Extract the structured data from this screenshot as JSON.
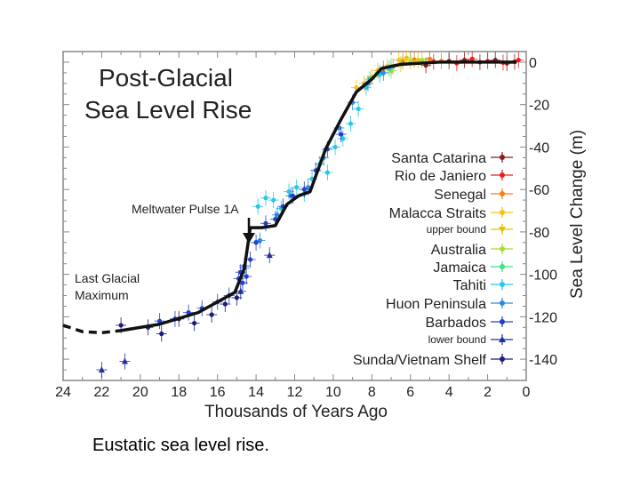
{
  "caption": "Eustatic sea level rise.",
  "chart_data": {
    "type": "scatter",
    "title_lines": [
      "Post-Glacial",
      "Sea Level Rise"
    ],
    "xlabel": "Thousands of Years Ago",
    "ylabel": "Sea Level Change (m)",
    "xlim": [
      24,
      0
    ],
    "ylim": [
      -150,
      5
    ],
    "x_ticks": [
      24,
      22,
      20,
      18,
      16,
      14,
      12,
      10,
      8,
      6,
      4,
      2,
      0
    ],
    "y_ticks": [
      0,
      -20,
      -40,
      -60,
      -80,
      -100,
      -120,
      -140
    ],
    "annotations": [
      {
        "text": "Meltwater Pulse 1A",
        "x": 14.6,
        "y": -87
      },
      {
        "text_lines": [
          "Last Glacial",
          "Maximum"
        ]
      }
    ],
    "curve": {
      "x": [
        21,
        19,
        17,
        15.1,
        14.6,
        14.3,
        13.7,
        13.0,
        12.4,
        11.8,
        11.2,
        10.4,
        9.6,
        8.8,
        8.0,
        7.5,
        6.5,
        5.5,
        4.5,
        3.5,
        2.5,
        1.5,
        0.5
      ],
      "y": [
        -126.5,
        -123.5,
        -118,
        -108.5,
        -97,
        -78,
        -78,
        -77,
        -67,
        -63,
        -61,
        -41,
        -27,
        -14,
        -8,
        -3,
        -1,
        -0.5,
        0,
        0,
        0,
        0,
        0
      ]
    },
    "dashed_extension": {
      "x": [
        24,
        23,
        22,
        21
      ],
      "y": [
        -124,
        -127,
        -127.5,
        -126.5
      ]
    },
    "legend": {
      "position": "right",
      "entries": [
        {
          "name": "Santa Catarina",
          "color": "#8b1a1a",
          "marker": "dot"
        },
        {
          "name": "Rio de Janiero",
          "color": "#e8201e",
          "marker": "dot"
        },
        {
          "name": "Senegal",
          "color": "#f57f17",
          "marker": "dot"
        },
        {
          "name": "Malacca Straits",
          "color": "#f7c010",
          "marker": "dot"
        },
        {
          "name": "upper bound",
          "color": "#e8c400",
          "marker": "triangle-down",
          "small": true
        },
        {
          "name": "Australia",
          "color": "#a8df2e",
          "marker": "dot"
        },
        {
          "name": "Jamaica",
          "color": "#3fe08a",
          "marker": "dot"
        },
        {
          "name": "Tahiti",
          "color": "#27c8e8",
          "marker": "dot"
        },
        {
          "name": "Huon Peninsula",
          "color": "#2a8ae0",
          "marker": "dot"
        },
        {
          "name": "Barbados",
          "color": "#2340c8",
          "marker": "dot"
        },
        {
          "name": "lower bound",
          "color": "#1f2f9e",
          "marker": "triangle-up",
          "small": true
        },
        {
          "name": "Sunda/Vietnam Shelf",
          "color": "#1c1c7a",
          "marker": "dot"
        }
      ]
    },
    "series": [
      {
        "name": "Santa Catarina",
        "x": [
          5.2,
          4.0,
          3.2,
          2.4,
          1.6,
          1.0,
          0.6
        ],
        "y": [
          -1.5,
          0.5,
          1,
          0,
          1,
          -0.5,
          0.2
        ]
      },
      {
        "name": "Rio de Janiero",
        "x": [
          4.8,
          3.6,
          2.8,
          2.0,
          1.2,
          0.4
        ],
        "y": [
          0.2,
          -0.5,
          1.5,
          0.5,
          -0.2,
          1
        ]
      },
      {
        "name": "Senegal",
        "x": [
          7.4,
          6.9,
          6.4,
          5.8,
          5.0,
          4.4
        ],
        "y": [
          -3,
          -2,
          0.5,
          1.2,
          1.5,
          0.5
        ]
      },
      {
        "name": "Malacca Straits",
        "x": [
          8.8,
          8.4,
          8.0,
          7.7,
          7.2,
          6.6,
          6.2,
          5.6
        ],
        "y": [
          -12,
          -10,
          -7,
          -4,
          -2,
          1,
          2,
          1
        ]
      },
      {
        "name": "Australia",
        "x": [
          7.0,
          6.5,
          6.0,
          5.4
        ],
        "y": [
          -4,
          -1,
          0.5,
          1
        ]
      },
      {
        "name": "Jamaica",
        "x": [
          8.1,
          7.6,
          7.0
        ],
        "y": [
          -8,
          -5,
          -2
        ]
      },
      {
        "name": "Tahiti",
        "x": [
          13.9,
          13.5,
          13.1,
          12.7,
          12.3,
          11.9,
          11.5,
          11.1,
          10.7,
          10.3,
          9.9,
          9.5,
          9.1,
          8.7,
          8.3,
          7.6,
          7.1
        ],
        "y": [
          -68,
          -64,
          -65,
          -69,
          -61,
          -59,
          -62,
          -55,
          -48,
          -52,
          -40,
          -36,
          -29,
          -22,
          -12,
          -6,
          -3
        ]
      },
      {
        "name": "Huon Peninsula",
        "x": [
          14.6,
          13.8,
          12.9,
          12.2,
          11.3,
          10.5,
          9.7,
          9.0,
          8.2,
          7.4
        ],
        "y": [
          -97,
          -84,
          -72,
          -63,
          -59,
          -45,
          -31,
          -19,
          -10,
          -5
        ]
      },
      {
        "name": "Barbados",
        "x": [
          19.0,
          18.2,
          17.5,
          16.8,
          16.0,
          15.4,
          14.9,
          14.8,
          14.7,
          14.6,
          14.5,
          14.3,
          14.0,
          13.5,
          13.0,
          12.6,
          12.1,
          11.5,
          10.9,
          10.3,
          9.6
        ],
        "y": [
          -122,
          -121,
          -118,
          -116,
          -113,
          -110,
          -102,
          -99,
          -104,
          -96,
          -101,
          -93,
          -85,
          -76,
          -74,
          -68,
          -63,
          -60,
          -51,
          -41,
          -34
        ]
      },
      {
        "name": "lower bound",
        "x": [
          22.0,
          20.8,
          14.8,
          13.3
        ],
        "y": [
          -145,
          -141,
          -108,
          -91
        ]
      },
      {
        "name": "Sunda/Vietnam Shelf",
        "x": [
          21.0,
          19.6,
          18.9,
          18.0,
          17.2,
          16.3,
          15.6,
          15.0
        ],
        "y": [
          -124,
          -125,
          -128,
          -121,
          -123,
          -119,
          -114,
          -111
        ]
      }
    ]
  }
}
